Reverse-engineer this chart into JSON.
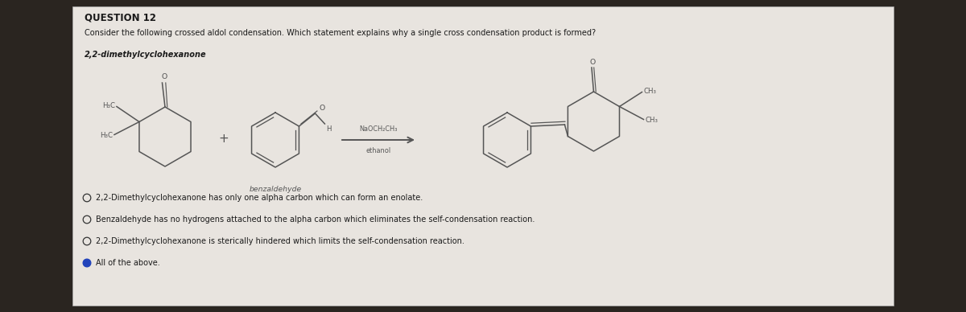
{
  "bg_color": "#2a2520",
  "panel_color": "#e8e4df",
  "text_color": "#1a1a1a",
  "title": "QUESTION 12",
  "question_text": "Consider the following crossed aldol condensation. Which statement explains why a single cross condensation product is formed?",
  "compound_label": "2,2-dimethylcyclohexanone",
  "reagent_line1": "NaOCH₂CH₃",
  "reagent_line2": "ethanol",
  "benzaldehyde_label": "benzaldehyde",
  "options": [
    {
      "text": "2,2-Dimethylcyclohexanone has only one alpha carbon which can form an enolate.",
      "selected": false
    },
    {
      "text": "Benzaldehyde has no hydrogens attached to the alpha carbon which eliminates the self-condensation reaction.",
      "selected": false
    },
    {
      "text": "2,2-Dimethylcyclohexanone is sterically hindered which limits the self-condensation reaction.",
      "selected": false
    },
    {
      "text": "All of the above.",
      "selected": true
    }
  ],
  "selected_color": "#2255cc",
  "unselected_color": "#333333",
  "struct_color": "#555555",
  "title_fontsize": 8.5,
  "body_fontsize": 7.0,
  "small_fontsize": 6.2,
  "opt_fontsize": 7.0
}
